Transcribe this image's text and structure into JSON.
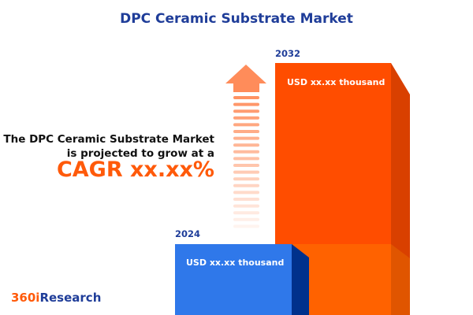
{
  "title": "DPC Ceramic Substrate Market",
  "description_line1": "The DPC Ceramic Substrate Market",
  "description_line2": "is projected to grow at a",
  "cagr": "CAGR xx.xx%",
  "logo": {
    "part1": "360i",
    "part2": "Research"
  },
  "colors": {
    "title": "#1f3d99",
    "accent": "#ff5a0a",
    "bar_2024": "#2f78ea",
    "bar_2032": "#ff4d00",
    "arrow": "#ff8c5a"
  },
  "icons": [
    "up-arrow-icon"
  ],
  "chart_data": {
    "type": "bar",
    "categories": [
      "2024",
      "2032"
    ],
    "data_labels": [
      "USD xx.xx thousand",
      "USD xx.xx thousand"
    ],
    "values": [
      null,
      null
    ],
    "title": "DPC Ceramic Substrate Market"
  }
}
